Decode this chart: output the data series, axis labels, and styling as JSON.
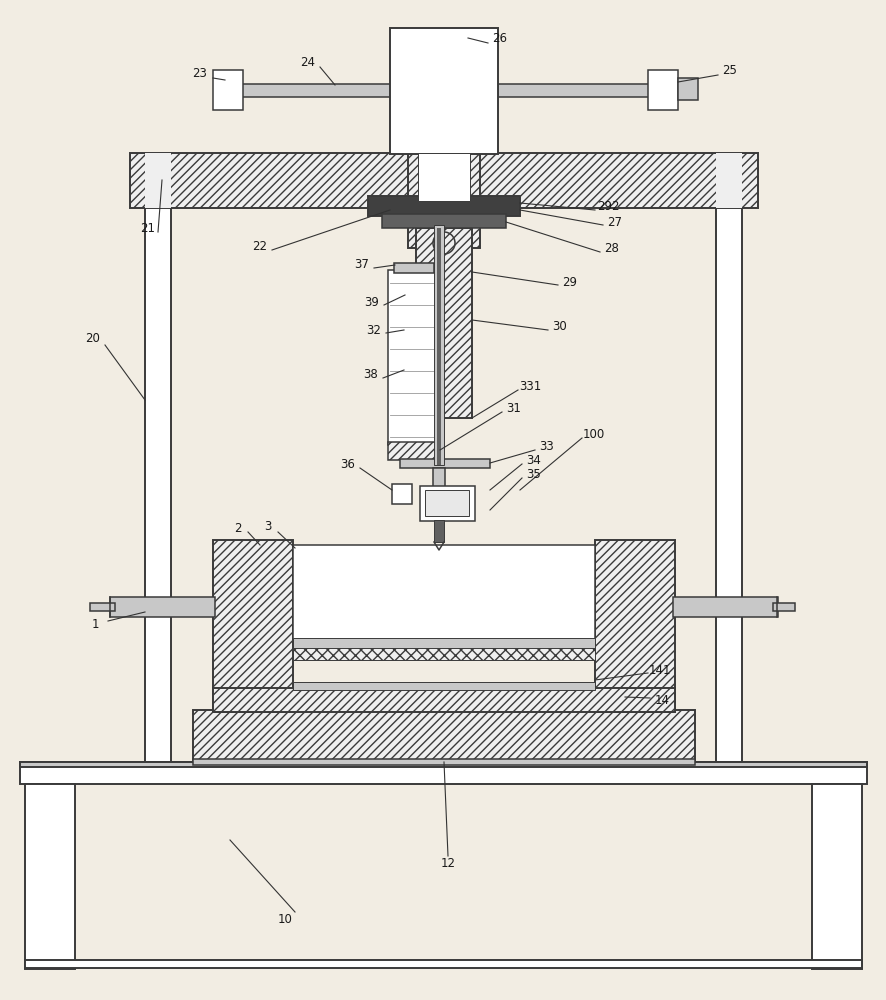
{
  "bg_color": "#f2ede3",
  "line_color": "#3a3a3a",
  "white_fill": "#ffffff",
  "light_gray": "#e8e8e8",
  "mid_gray": "#c8c8c8",
  "dark_gray": "#606060",
  "very_dark": "#404040",
  "hatch_fill": "#efefef"
}
